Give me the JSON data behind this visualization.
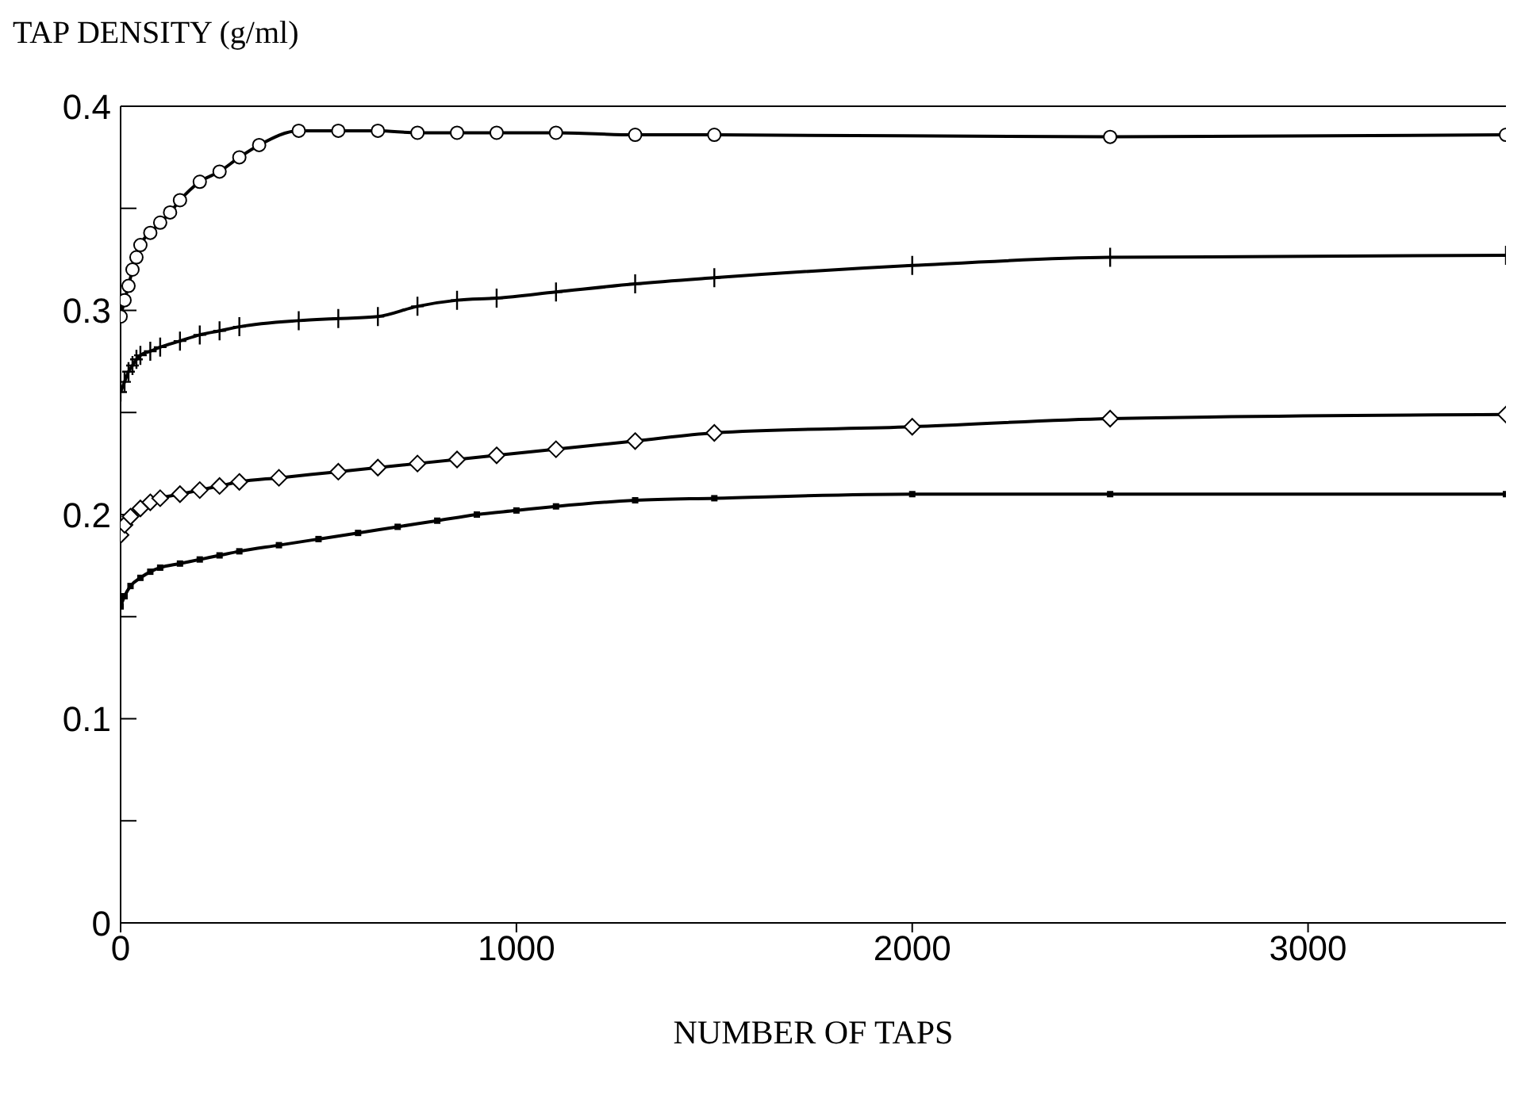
{
  "chart_data": {
    "type": "line",
    "ylabel": "TAP DENSITY (g/ml)",
    "xlabel": "NUMBER OF TAPS",
    "xlim": [
      0,
      3500
    ],
    "xticks": [
      0,
      1000,
      2000,
      3000
    ],
    "ylim": [
      0,
      0.4
    ],
    "yticks": [
      0,
      {
        "value": 0.05,
        "label": null
      },
      0.1,
      {
        "value": 0.15,
        "label": null
      },
      0.2,
      {
        "value": 0.25,
        "label": null
      },
      0.3,
      {
        "value": 0.35,
        "label": null
      },
      0.4
    ],
    "grid": false,
    "legend": false,
    "line_style": "solid",
    "series": [
      {
        "color": "#000000",
        "marker": "circle",
        "x": [
          0,
          10,
          20,
          30,
          40,
          50,
          75,
          100,
          125,
          150,
          200,
          250,
          300,
          350,
          450,
          550,
          650,
          750,
          850,
          950,
          1100,
          1300,
          1500,
          2500,
          3500
        ],
        "values": [
          0.297,
          0.305,
          0.312,
          0.32,
          0.326,
          0.332,
          0.338,
          0.343,
          0.348,
          0.354,
          0.363,
          0.368,
          0.375,
          0.381,
          0.388,
          0.388,
          0.388,
          0.387,
          0.387,
          0.387,
          0.387,
          0.386,
          0.386,
          0.385,
          0.386
        ]
      },
      {
        "color": "#000000",
        "marker": "cross",
        "x": [
          0,
          10,
          20,
          30,
          40,
          50,
          75,
          100,
          150,
          200,
          250,
          300,
          450,
          550,
          650,
          750,
          850,
          950,
          1100,
          1300,
          1500,
          2000,
          2500,
          3500
        ],
        "values": [
          0.26,
          0.265,
          0.27,
          0.273,
          0.276,
          0.278,
          0.28,
          0.282,
          0.285,
          0.288,
          0.29,
          0.292,
          0.295,
          0.296,
          0.297,
          0.302,
          0.305,
          0.306,
          0.309,
          0.313,
          0.316,
          0.322,
          0.326,
          0.327
        ]
      },
      {
        "color": "#000000",
        "marker": "diamond",
        "x": [
          0,
          10,
          25,
          50,
          75,
          100,
          150,
          200,
          250,
          300,
          400,
          550,
          650,
          750,
          850,
          950,
          1100,
          1300,
          1500,
          2000,
          2500,
          3500
        ],
        "values": [
          0.19,
          0.195,
          0.199,
          0.203,
          0.206,
          0.208,
          0.21,
          0.212,
          0.214,
          0.216,
          0.218,
          0.221,
          0.223,
          0.225,
          0.227,
          0.229,
          0.232,
          0.236,
          0.24,
          0.243,
          0.247,
          0.249
        ]
      },
      {
        "color": "#000000",
        "marker": "square",
        "x": [
          0,
          10,
          25,
          50,
          75,
          100,
          150,
          200,
          250,
          300,
          400,
          500,
          600,
          700,
          800,
          900,
          1000,
          1100,
          1300,
          1500,
          2000,
          2500,
          3500
        ],
        "values": [
          0.155,
          0.16,
          0.165,
          0.169,
          0.172,
          0.174,
          0.176,
          0.178,
          0.18,
          0.182,
          0.185,
          0.188,
          0.191,
          0.194,
          0.197,
          0.2,
          0.202,
          0.204,
          0.207,
          0.208,
          0.21,
          0.21,
          0.21
        ]
      }
    ]
  }
}
